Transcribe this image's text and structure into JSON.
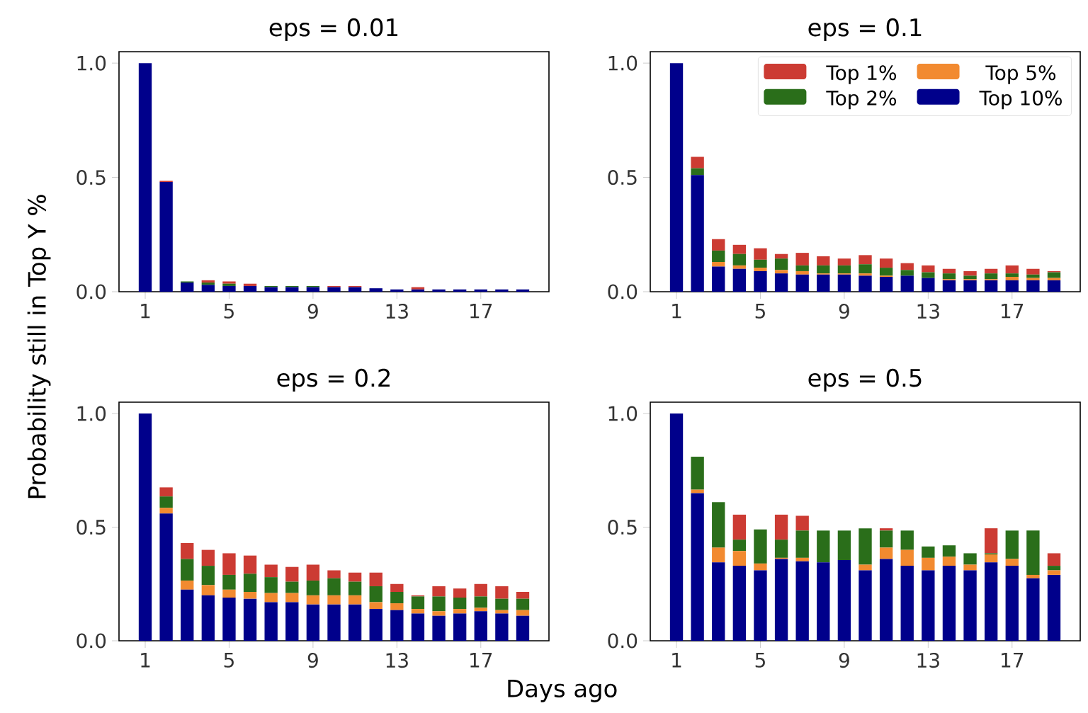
{
  "chart_data": [
    {
      "type": "bar",
      "title": "eps = 0.01",
      "ylabel": "Probability still in Top Y %",
      "stacked": true,
      "categories": [
        "1",
        null,
        null,
        null,
        "5",
        null,
        null,
        null,
        "9",
        null,
        null,
        null,
        "13",
        null,
        null,
        null,
        "17",
        null,
        null
      ],
      "ylim": [
        0,
        1.05
      ],
      "yticks": [
        {
          "value": 0,
          "label": "0.0"
        },
        {
          "value": 0.5,
          "label": "0.5"
        },
        {
          "value": 1,
          "label": "1.0"
        }
      ],
      "series": [
        {
          "color": "#00008b",
          "values": [
            1.0,
            0.48,
            0.04,
            0.03,
            0.025,
            0.025,
            0.02,
            0.02,
            0.02,
            0.02,
            0.02,
            0.015,
            0.01,
            0.01,
            0.01,
            0.01,
            0.01,
            0.01,
            0.01
          ]
        },
        {
          "color": "#f28a30",
          "values": [
            0,
            0,
            0,
            0,
            0,
            0,
            0,
            0,
            0,
            0,
            0,
            0,
            0,
            0,
            0,
            0,
            0,
            0,
            0
          ]
        },
        {
          "color": "#2a6e1a",
          "values": [
            0,
            0,
            0.005,
            0.01,
            0.01,
            0,
            0.005,
            0.005,
            0.005,
            0,
            0,
            0,
            0,
            0,
            0,
            0,
            0,
            0,
            0
          ]
        },
        {
          "color": "#cc3b33",
          "values": [
            0,
            0.005,
            0,
            0.01,
            0.01,
            0.01,
            0,
            0,
            0,
            0.005,
            0.005,
            0,
            0,
            0.01,
            0,
            0,
            0,
            0,
            0
          ]
        }
      ]
    },
    {
      "type": "bar",
      "title": "eps = 0.1",
      "stacked": true,
      "legend": "top right",
      "categories": [
        "1",
        null,
        null,
        null,
        "5",
        null,
        null,
        null,
        "9",
        null,
        null,
        null,
        "13",
        null,
        null,
        null,
        "17",
        null,
        null
      ],
      "ylim": [
        0,
        1.05
      ],
      "yticks": [
        {
          "value": 0,
          "label": "0.0"
        },
        {
          "value": 0.5,
          "label": "0.5"
        },
        {
          "value": 1,
          "label": "1.0"
        }
      ],
      "series": [
        {
          "name": "Top 10%",
          "color": "#00008b",
          "values": [
            1.0,
            0.51,
            0.11,
            0.1,
            0.09,
            0.08,
            0.075,
            0.075,
            0.075,
            0.07,
            0.065,
            0.07,
            0.06,
            0.05,
            0.05,
            0.05,
            0.05,
            0.05,
            0.05
          ]
        },
        {
          "name": "Top 5%",
          "color": "#f28a30",
          "values": [
            0,
            0,
            0.02,
            0.015,
            0.015,
            0.015,
            0.015,
            0.005,
            0.005,
            0.01,
            0.005,
            0,
            0,
            0.005,
            0.005,
            0.005,
            0.015,
            0.01,
            0.01
          ]
        },
        {
          "name": "Top 2%",
          "color": "#2a6e1a",
          "values": [
            0,
            0.03,
            0.05,
            0.05,
            0.035,
            0.05,
            0.025,
            0.035,
            0.035,
            0.04,
            0.035,
            0.025,
            0.025,
            0.025,
            0.015,
            0.025,
            0.015,
            0.015,
            0.025
          ]
        },
        {
          "name": "Top 1%",
          "color": "#cc3b33",
          "values": [
            0,
            0.05,
            0.05,
            0.04,
            0.05,
            0.02,
            0.055,
            0.04,
            0.03,
            0.04,
            0.04,
            0.03,
            0.03,
            0.02,
            0.02,
            0.02,
            0.035,
            0.025,
            0.005
          ]
        }
      ]
    },
    {
      "type": "bar",
      "title": "eps = 0.2",
      "xlabel": "Days ago",
      "stacked": true,
      "categories": [
        "1",
        null,
        null,
        null,
        "5",
        null,
        null,
        null,
        "9",
        null,
        null,
        null,
        "13",
        null,
        null,
        null,
        "17",
        null,
        null
      ],
      "ylim": [
        0,
        1.05
      ],
      "yticks": [
        {
          "value": 0,
          "label": "0.0"
        },
        {
          "value": 0.5,
          "label": "0.5"
        },
        {
          "value": 1,
          "label": "1.0"
        }
      ],
      "series": [
        {
          "color": "#00008b",
          "values": [
            1.0,
            0.56,
            0.225,
            0.2,
            0.19,
            0.185,
            0.17,
            0.17,
            0.16,
            0.16,
            0.16,
            0.14,
            0.135,
            0.12,
            0.11,
            0.12,
            0.13,
            0.12,
            0.11
          ]
        },
        {
          "color": "#f28a30",
          "values": [
            0,
            0.025,
            0.04,
            0.045,
            0.035,
            0.03,
            0.04,
            0.04,
            0.04,
            0.04,
            0.04,
            0.03,
            0.03,
            0.02,
            0.02,
            0.02,
            0.015,
            0.015,
            0.025
          ]
        },
        {
          "color": "#2a6e1a",
          "values": [
            0,
            0.05,
            0.095,
            0.085,
            0.065,
            0.08,
            0.07,
            0.05,
            0.065,
            0.075,
            0.06,
            0.07,
            0.05,
            0.055,
            0.065,
            0.05,
            0.05,
            0.05,
            0.05
          ]
        },
        {
          "color": "#cc3b33",
          "values": [
            0,
            0.04,
            0.07,
            0.07,
            0.095,
            0.08,
            0.055,
            0.065,
            0.07,
            0.035,
            0.04,
            0.06,
            0.035,
            0.005,
            0.045,
            0.04,
            0.055,
            0.055,
            0.03
          ]
        }
      ]
    },
    {
      "type": "bar",
      "title": "eps = 0.5",
      "stacked": true,
      "categories": [
        "1",
        null,
        null,
        null,
        "5",
        null,
        null,
        null,
        "9",
        null,
        null,
        null,
        "13",
        null,
        null,
        null,
        "17",
        null,
        null
      ],
      "ylim": [
        0,
        1.05
      ],
      "yticks": [
        {
          "value": 0,
          "label": "0.0"
        },
        {
          "value": 0.5,
          "label": "0.5"
        },
        {
          "value": 1,
          "label": "1.0"
        }
      ],
      "series": [
        {
          "color": "#00008b",
          "values": [
            1.0,
            0.65,
            0.345,
            0.33,
            0.31,
            0.36,
            0.35,
            0.345,
            0.355,
            0.31,
            0.36,
            0.33,
            0.31,
            0.33,
            0.31,
            0.345,
            0.33,
            0.275,
            0.29
          ]
        },
        {
          "color": "#f28a30",
          "values": [
            0,
            0.015,
            0.065,
            0.065,
            0.03,
            0.005,
            0.015,
            0,
            0,
            0.025,
            0.05,
            0.07,
            0.055,
            0.04,
            0.025,
            0.035,
            0.03,
            0.015,
            0.02
          ]
        },
        {
          "color": "#2a6e1a",
          "values": [
            0,
            0.145,
            0.2,
            0.05,
            0.15,
            0.08,
            0.12,
            0.14,
            0.13,
            0.16,
            0.075,
            0.085,
            0.05,
            0.05,
            0.05,
            0.005,
            0.125,
            0.195,
            0.02
          ]
        },
        {
          "color": "#cc3b33",
          "values": [
            0,
            0,
            0,
            0.11,
            0,
            0.11,
            0.065,
            0,
            0,
            0,
            0.01,
            0,
            0,
            0,
            0,
            0.11,
            0,
            0,
            0.055
          ]
        }
      ]
    }
  ]
}
